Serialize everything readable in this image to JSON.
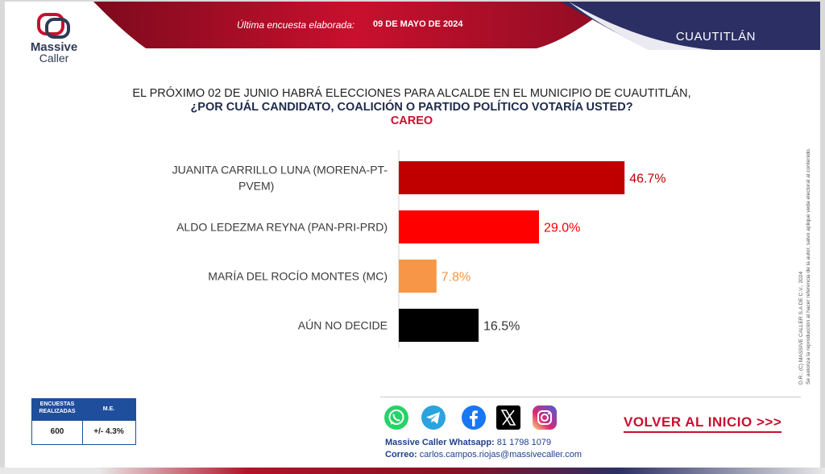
{
  "header": {
    "label": "Última encuesta elaborada:",
    "date": "09 DE MAYO DE 2024",
    "region": "CUAUTITLÁN"
  },
  "logo": {
    "line1": "Massive",
    "line2": "Caller"
  },
  "question": {
    "line1": "EL PRÓXIMO 02 DE JUNIO HABRÁ ELECCIONES PARA ALCALDE EN EL MUNICIPIO DE CUAUTITLÁN,",
    "line2": "¿POR CUÁL CANDIDATO, COALICIÓN O PARTIDO POLÍTICO VOTARÍA USTED?",
    "line3": "CAREO"
  },
  "chart_data": {
    "type": "bar",
    "orientation": "horizontal",
    "categories": [
      [
        "JUANITA CARRILLO LUNA (MORENA-PT-",
        "PVEM)"
      ],
      [
        "ALDO LEDEZMA REYNA (PAN-PRI-PRD)"
      ],
      [
        "MARÍA DEL ROCÍO MONTES (MC)"
      ],
      [
        "AÚN NO DECIDE"
      ]
    ],
    "values": [
      46.7,
      29.0,
      7.8,
      16.5
    ],
    "value_labels": [
      "46.7%",
      "29.0%",
      "7.8%",
      "16.5%"
    ],
    "colors": [
      "#c00000",
      "#ff0000",
      "#f79646",
      "#000000"
    ],
    "label_colors": [
      "#c00000",
      "#ff0000",
      "#f79646",
      "#333333"
    ],
    "xlim": [
      0,
      100
    ],
    "grid": false
  },
  "side_text": {
    "line1": "D.R.: (C) MASSIVE CALLER S.A DE C.V., 2024",
    "line2": "Se autoriza la reproducción al hacer referencia de la autor, salvo aplique veda electoral al contenido."
  },
  "stats": {
    "header1": "ENCUESTAS REALIZADAS",
    "header2": "M.E.",
    "value1": "600",
    "value2": "+/- 4.3%"
  },
  "footer": {
    "back_link": "VOLVER AL INICIO >>>",
    "whatsapp_label": "Massive Caller Whatsapp:",
    "whatsapp_number": "81 1798 1079",
    "email_label": "Correo:",
    "email": "carlos.campos.riojas@massivecaller.com",
    "social": [
      "whatsapp-icon",
      "telegram-icon",
      "facebook-icon",
      "x-icon",
      "instagram-icon"
    ]
  },
  "colors": {
    "brand_red": "#c8102e",
    "brand_navy": "#2b2f63",
    "table_blue": "#1f4e9c"
  }
}
